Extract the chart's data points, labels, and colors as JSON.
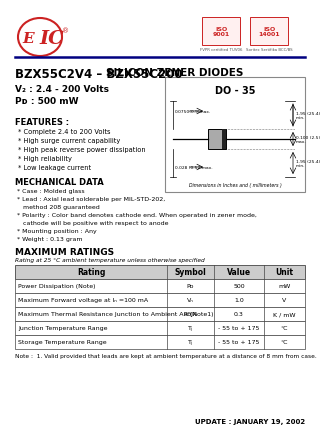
{
  "title_part": "BZX55C2V4 – BZX55C200",
  "title_type": "SILICON ZENER DIODES",
  "package": "DO - 35",
  "vz_range": "V₂ : 2.4 - 200 Volts",
  "pd": "Pᴅ : 500 mW",
  "features_title": "FEATURES :",
  "features": [
    "* Complete 2.4 to 200 Volts",
    "* High surge current capability",
    "* High peak reverse power dissipation",
    "* High reliability",
    "* Low leakage current"
  ],
  "mech_title": "MECHANICAL DATA",
  "mech_items": [
    "* Case : Molded glass",
    "* Lead : Axial lead solderable per MIL-STD-202,",
    "   method 208 guaranteed",
    "* Polarity : Color band denotes cathode end. When operated in zener mode,",
    "   cathode will be positive with respect to anode",
    "* Mounting position : Any",
    "* Weight : 0.13 gram"
  ],
  "ratings_title": "MAXIMUM RATINGS",
  "ratings_subtitle": "Rating at 25 °C ambient temperature unless otherwise specified",
  "table_headers": [
    "Rating",
    "Symbol",
    "Value",
    "Unit"
  ],
  "table_rows": [
    [
      "Power Dissipation (Note)",
      "Pᴅ",
      "500",
      "mW"
    ],
    [
      "Maximum Forward voltage at Iₙ =100 mA",
      "Vₙ",
      "1.0",
      "V"
    ],
    [
      "Maximum Thermal Resistance Junction to Ambient Air (Note1)",
      "RθJA",
      "0.3",
      "K / mW"
    ],
    [
      "Junction Temperature Range",
      "Tⱼ",
      "- 55 to + 175",
      "°C"
    ],
    [
      "Storage Temperature Range",
      "Tⱼ",
      "- 55 to + 175",
      "°C"
    ]
  ],
  "note": "Note :  1. Valid provided that leads are kept at ambient temperature at a distance of 8 mm from case.",
  "update": "UPDATE : JANUARY 19, 2002",
  "eic_color": "#cc2222",
  "navy": "#000080",
  "black": "#000000",
  "bg_color": "#ffffff",
  "gray_header": "#cccccc",
  "dim_note": "Dimensions in Inches and ( millimeters )"
}
